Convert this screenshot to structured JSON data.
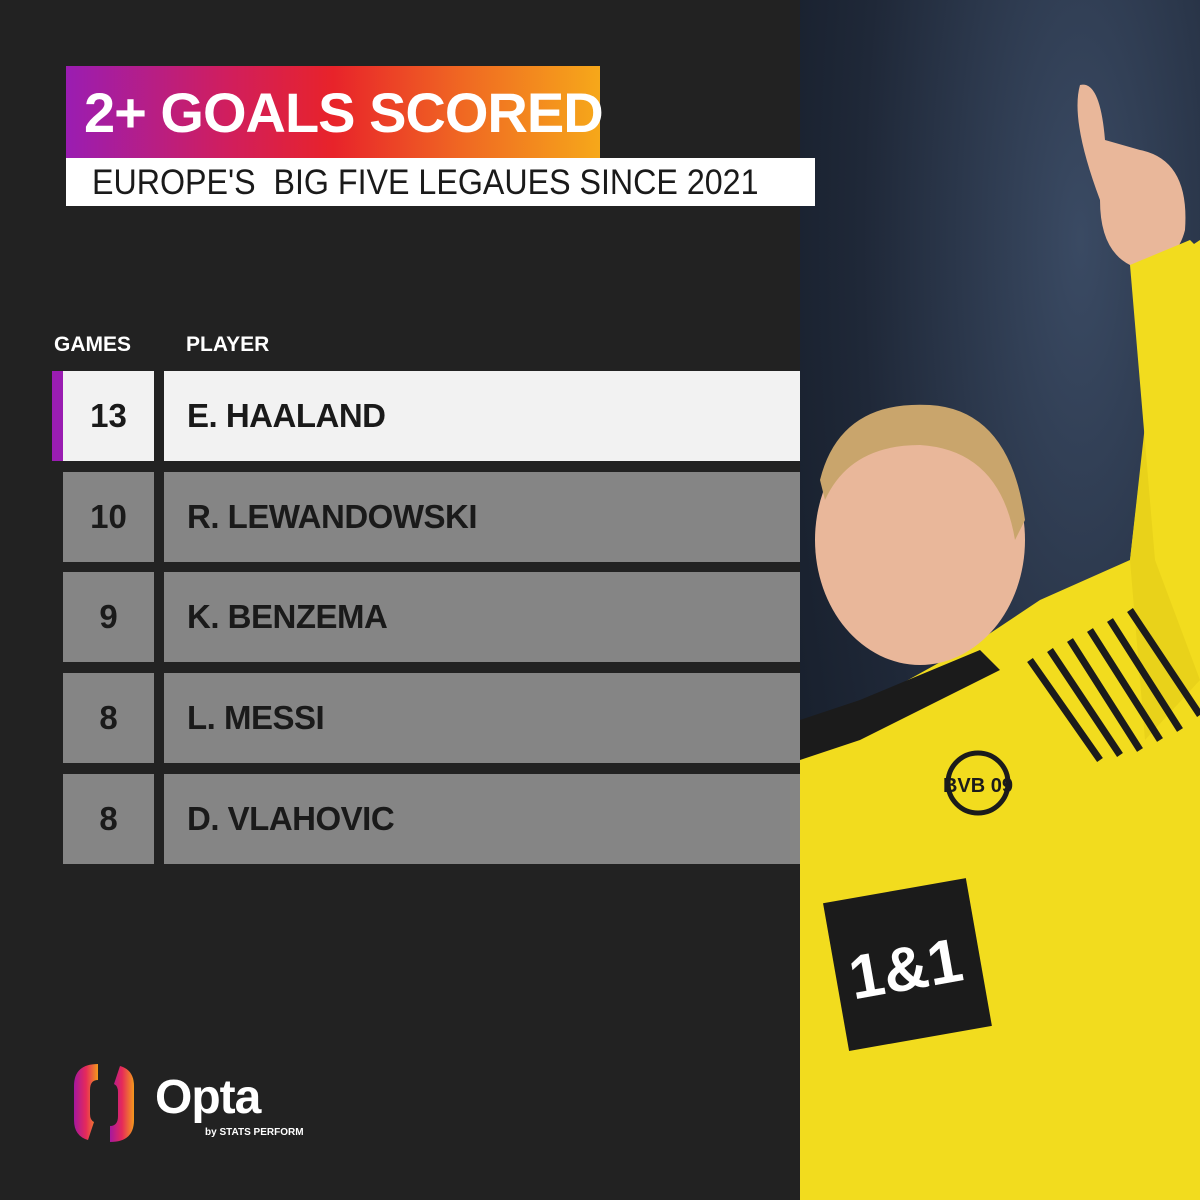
{
  "header": {
    "title": "2+ GOALS SCORED",
    "subtitle": "EUROPE'S  BIG FIVE LEGAUES SINCE 2021"
  },
  "colors": {
    "gradient": [
      "#9a1db2",
      "#e8232a",
      "#f6a81a"
    ],
    "highlight_row": "#f2f2f2",
    "row": "#858585",
    "accent": "#9a1db2",
    "background": "#222222"
  },
  "chart_data": {
    "type": "table",
    "columns": [
      "GAMES",
      "PLAYER"
    ],
    "rows": [
      {
        "games": 13,
        "player": "E. HAALAND",
        "highlight": true
      },
      {
        "games": 10,
        "player": "R. LEWANDOWSKI",
        "highlight": false
      },
      {
        "games": 9,
        "player": "K. BENZEMA",
        "highlight": false
      },
      {
        "games": 8,
        "player": "L. MESSI",
        "highlight": false
      },
      {
        "games": 8,
        "player": "D. VLAHOVIC",
        "highlight": false
      }
    ]
  },
  "photo": {
    "shirt_sponsor": "1&1",
    "crest": "BVB 09"
  },
  "logo": {
    "name": "Opta",
    "byline": "by STATS PERFORM"
  }
}
